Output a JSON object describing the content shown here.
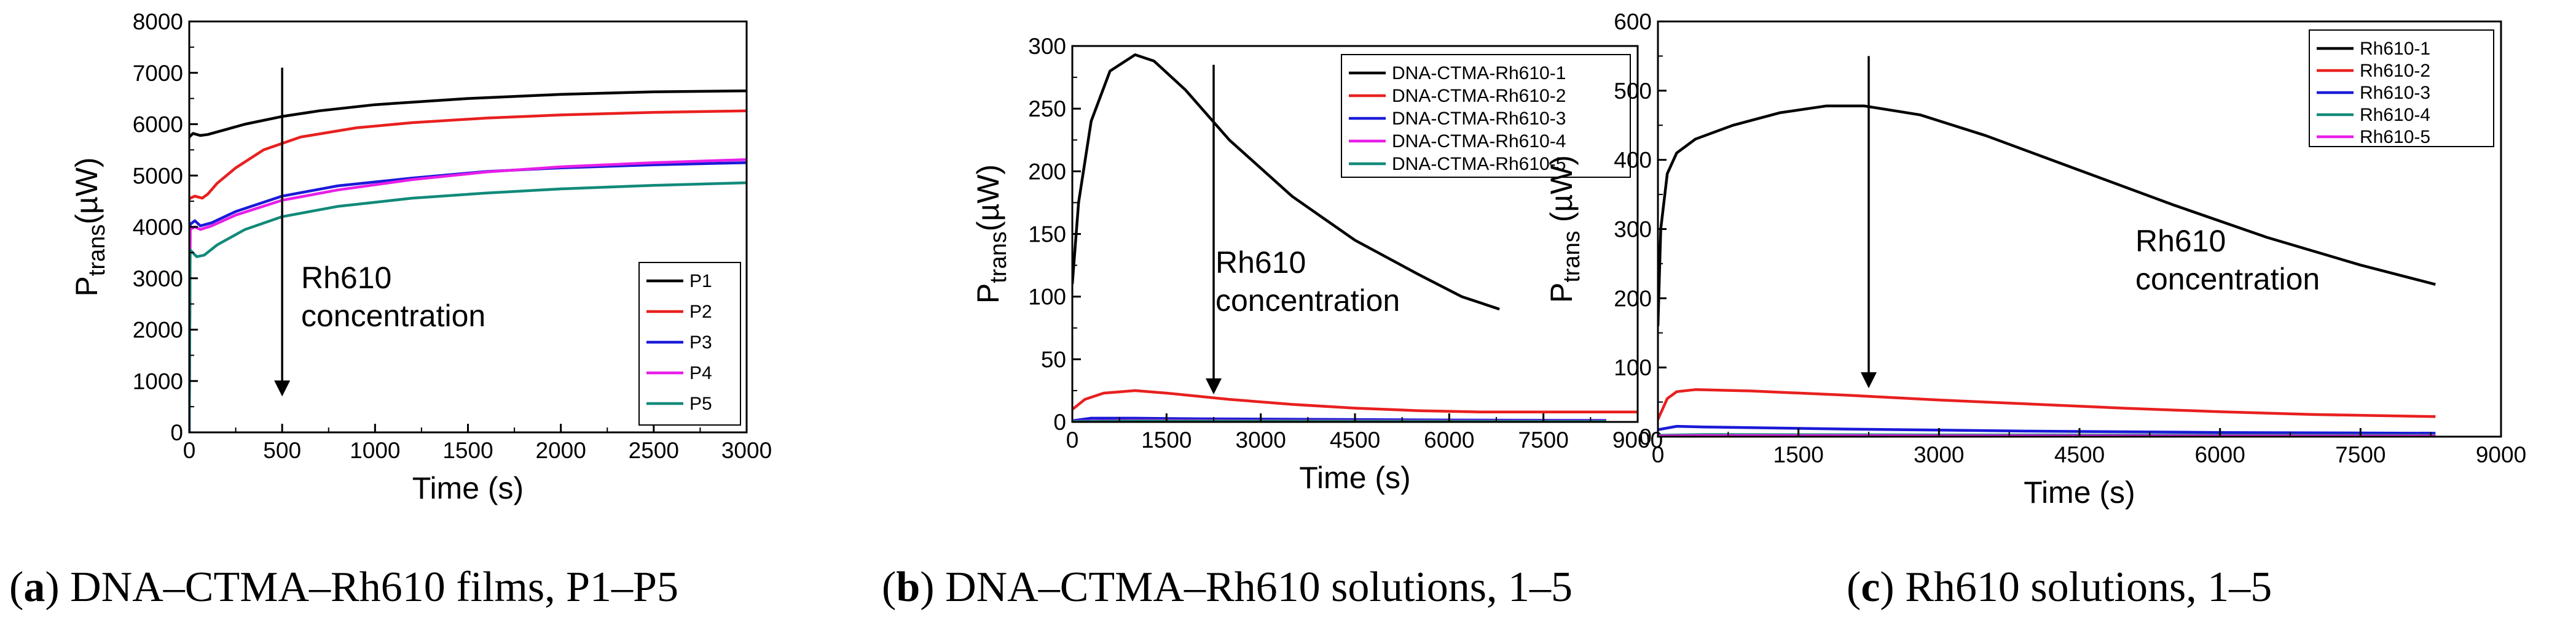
{
  "chart_data": [
    {
      "type": "line",
      "caption": {
        "letter": "a",
        "text": "DNA–CTMA–Rh610 films, P1–P5"
      },
      "xlabel": "Time (s)",
      "ylabel": {
        "main": "P",
        "sub": "trans",
        "unit": "(µW)"
      },
      "xlim": [
        0,
        3000
      ],
      "ylim": [
        0,
        8000
      ],
      "xticks": [
        0,
        500,
        1000,
        1500,
        2000,
        2500,
        3000
      ],
      "yticks": [
        0,
        1000,
        2000,
        3000,
        4000,
        5000,
        6000,
        7000,
        8000
      ],
      "legend_position": "bottom-right",
      "annotation": {
        "lines": [
          "Rh610",
          "concentration"
        ],
        "arrow_x": 500,
        "arrow_from": 7100,
        "arrow_to": 700
      },
      "series": [
        {
          "name": "P1",
          "color": "#000000",
          "points": [
            [
              0,
              5750
            ],
            [
              20,
              5820
            ],
            [
              60,
              5780
            ],
            [
              100,
              5800
            ],
            [
              200,
              5900
            ],
            [
              300,
              6000
            ],
            [
              500,
              6150
            ],
            [
              700,
              6260
            ],
            [
              1000,
              6380
            ],
            [
              1500,
              6500
            ],
            [
              2000,
              6580
            ],
            [
              2500,
              6630
            ],
            [
              3000,
              6650
            ]
          ]
        },
        {
          "name": "P2",
          "color": "#e8201f",
          "points": [
            [
              0,
              4550
            ],
            [
              30,
              4600
            ],
            [
              70,
              4560
            ],
            [
              100,
              4640
            ],
            [
              150,
              4850
            ],
            [
              250,
              5150
            ],
            [
              400,
              5500
            ],
            [
              600,
              5750
            ],
            [
              900,
              5930
            ],
            [
              1200,
              6030
            ],
            [
              1600,
              6120
            ],
            [
              2000,
              6180
            ],
            [
              2500,
              6230
            ],
            [
              3000,
              6260
            ]
          ]
        },
        {
          "name": "P3",
          "color": "#1a1ad8",
          "points": [
            [
              0,
              0
            ],
            [
              5,
              4050
            ],
            [
              30,
              4120
            ],
            [
              60,
              4020
            ],
            [
              120,
              4080
            ],
            [
              250,
              4300
            ],
            [
              500,
              4600
            ],
            [
              800,
              4800
            ],
            [
              1200,
              4950
            ],
            [
              1600,
              5080
            ],
            [
              2000,
              5150
            ],
            [
              2500,
              5210
            ],
            [
              3000,
              5250
            ]
          ]
        },
        {
          "name": "P4",
          "color": "#e81ee8",
          "points": [
            [
              0,
              0
            ],
            [
              5,
              3950
            ],
            [
              30,
              4000
            ],
            [
              60,
              3950
            ],
            [
              120,
              4020
            ],
            [
              250,
              4230
            ],
            [
              500,
              4520
            ],
            [
              800,
              4720
            ],
            [
              1200,
              4920
            ],
            [
              1600,
              5070
            ],
            [
              2000,
              5170
            ],
            [
              2500,
              5250
            ],
            [
              3000,
              5310
            ]
          ]
        },
        {
          "name": "P5",
          "color": "#128a7a",
          "points": [
            [
              0,
              0
            ],
            [
              5,
              3550
            ],
            [
              40,
              3420
            ],
            [
              80,
              3450
            ],
            [
              150,
              3650
            ],
            [
              300,
              3950
            ],
            [
              500,
              4200
            ],
            [
              800,
              4400
            ],
            [
              1200,
              4560
            ],
            [
              1600,
              4660
            ],
            [
              2000,
              4740
            ],
            [
              2500,
              4810
            ],
            [
              3000,
              4860
            ]
          ]
        }
      ]
    },
    {
      "type": "line",
      "caption": {
        "letter": "b",
        "text": "DNA–CTMA–Rh610 solutions, 1–5"
      },
      "xlabel": "Time (s)",
      "ylabel": {
        "main": "P",
        "sub": "trans",
        "unit": "(µW)"
      },
      "xlim": [
        0,
        9000
      ],
      "ylim": [
        0,
        300
      ],
      "xticks": [
        0,
        1500,
        3000,
        4500,
        6000,
        7500,
        9000
      ],
      "yticks": [
        0,
        50,
        100,
        150,
        200,
        250,
        300
      ],
      "legend_position": "top-right",
      "annotation": {
        "lines": [
          "Rh610",
          "concentration"
        ],
        "arrow_x": 2250,
        "arrow_from": 285,
        "arrow_to": 22
      },
      "series": [
        {
          "name": "DNA-CTMA-Rh610-1",
          "color": "#000000",
          "points": [
            [
              0,
              110
            ],
            [
              100,
              175
            ],
            [
              300,
              240
            ],
            [
              600,
              280
            ],
            [
              1000,
              293
            ],
            [
              1300,
              288
            ],
            [
              1800,
              265
            ],
            [
              2500,
              225
            ],
            [
              3500,
              180
            ],
            [
              4500,
              145
            ],
            [
              5500,
              118
            ],
            [
              6200,
              100
            ],
            [
              6800,
              90
            ]
          ]
        },
        {
          "name": "DNA-CTMA-Rh610-2",
          "color": "#e8201f",
          "points": [
            [
              0,
              10
            ],
            [
              200,
              18
            ],
            [
              500,
              23
            ],
            [
              1000,
              25
            ],
            [
              1500,
              23
            ],
            [
              2500,
              18
            ],
            [
              3500,
              14
            ],
            [
              4500,
              11
            ],
            [
              5500,
              9
            ],
            [
              6500,
              8
            ],
            [
              7500,
              8
            ],
            [
              8500,
              8
            ],
            [
              9000,
              8
            ]
          ]
        },
        {
          "name": "DNA-CTMA-Rh610-3",
          "color": "#1a1ad8",
          "points": [
            [
              0,
              1
            ],
            [
              300,
              3
            ],
            [
              1000,
              3
            ],
            [
              2000,
              2.5
            ],
            [
              4000,
              2
            ],
            [
              6000,
              1.5
            ],
            [
              8500,
              1.2
            ]
          ]
        },
        {
          "name": "DNA-CTMA-Rh610-4",
          "color": "#e81ee8",
          "points": [
            [
              0,
              0.5
            ],
            [
              1000,
              1.2
            ],
            [
              3000,
              1
            ],
            [
              6000,
              0.8
            ],
            [
              8500,
              0.6
            ]
          ]
        },
        {
          "name": "DNA-CTMA-Rh610-5",
          "color": "#128a7a",
          "points": [
            [
              0,
              0.3
            ],
            [
              1000,
              0.8
            ],
            [
              3000,
              0.7
            ],
            [
              6000,
              0.5
            ],
            [
              8500,
              0.4
            ]
          ]
        }
      ]
    },
    {
      "type": "line",
      "caption": {
        "letter": "c",
        "text": "Rh610 solutions, 1–5"
      },
      "xlabel": "Time (s)",
      "ylabel": {
        "main": "P",
        "sub": "trans",
        "unit": " (µW)"
      },
      "xlim": [
        0,
        9000
      ],
      "ylim": [
        0,
        600
      ],
      "xticks": [
        0,
        1500,
        3000,
        4500,
        6000,
        7500,
        9000
      ],
      "yticks": [
        0,
        100,
        200,
        300,
        400,
        500,
        600
      ],
      "legend_position": "top-right",
      "annotation": {
        "lines": [
          "Rh610",
          "concentration"
        ],
        "arrow_x": 2250,
        "arrow_from": 550,
        "arrow_to": 70
      },
      "series": [
        {
          "name": "Rh610-1",
          "color": "#000000",
          "points": [
            [
              0,
              160
            ],
            [
              30,
              300
            ],
            [
              100,
              380
            ],
            [
              200,
              410
            ],
            [
              400,
              430
            ],
            [
              800,
              450
            ],
            [
              1300,
              468
            ],
            [
              1800,
              478
            ],
            [
              2200,
              478
            ],
            [
              2800,
              465
            ],
            [
              3500,
              435
            ],
            [
              4500,
              385
            ],
            [
              5500,
              335
            ],
            [
              6500,
              288
            ],
            [
              7500,
              248
            ],
            [
              8300,
              220
            ]
          ]
        },
        {
          "name": "Rh610-2",
          "color": "#e8201f",
          "points": [
            [
              0,
              25
            ],
            [
              100,
              55
            ],
            [
              200,
              65
            ],
            [
              400,
              68
            ],
            [
              1000,
              66
            ],
            [
              2000,
              60
            ],
            [
              3000,
              53
            ],
            [
              4000,
              47
            ],
            [
              5000,
              41
            ],
            [
              6000,
              36
            ],
            [
              7000,
              32
            ],
            [
              8300,
              29
            ]
          ]
        },
        {
          "name": "Rh610-3",
          "color": "#1a1ad8",
          "points": [
            [
              0,
              10
            ],
            [
              200,
              15
            ],
            [
              500,
              14
            ],
            [
              2000,
              11
            ],
            [
              4000,
              8
            ],
            [
              6000,
              6
            ],
            [
              8300,
              5
            ]
          ]
        },
        {
          "name": "Rh610-4",
          "color": "#128a7a",
          "points": [
            [
              0,
              2
            ],
            [
              500,
              3
            ],
            [
              3000,
              2.5
            ],
            [
              8300,
              2
            ]
          ]
        },
        {
          "name": "Rh610-5",
          "color": "#e81ee8",
          "points": [
            [
              0,
              1
            ],
            [
              500,
              1.5
            ],
            [
              3000,
              1.2
            ],
            [
              8300,
              1
            ]
          ]
        }
      ]
    }
  ]
}
